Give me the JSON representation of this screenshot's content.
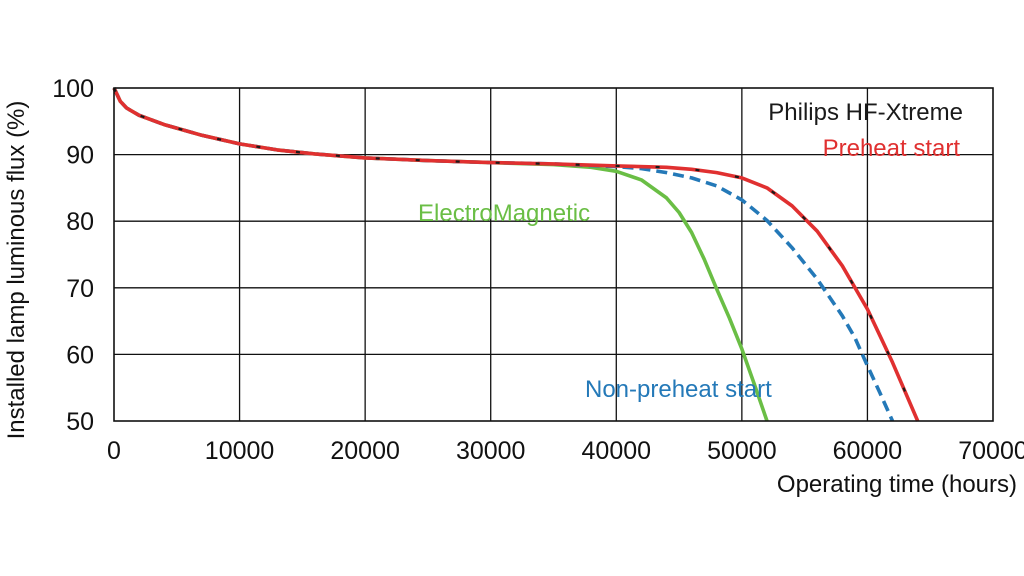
{
  "chart_data": {
    "type": "line",
    "title": "",
    "xlabel": "Operating time (hours)",
    "ylabel": "Installed lamp luminous flux  (%)",
    "xlim": [
      0,
      70000
    ],
    "ylim": [
      50,
      100
    ],
    "x_ticks": [
      0,
      10000,
      20000,
      30000,
      40000,
      50000,
      60000,
      70000
    ],
    "x_tick_labels": [
      "0",
      "10000",
      "20000",
      "30000",
      "40000",
      "50000",
      "60000",
      "70000"
    ],
    "y_ticks": [
      50,
      60,
      70,
      80,
      90,
      100
    ],
    "y_tick_labels": [
      "50",
      "60",
      "70",
      "80",
      "90",
      "100"
    ],
    "grid": true,
    "annotations": [
      {
        "text": "Philips HF-Xtreme",
        "color": "#1a1a1a"
      },
      {
        "text": "Preheat start",
        "color": "#e03030"
      },
      {
        "text": "ElectroMagnetic",
        "color": "#6abe45"
      },
      {
        "text": "Non-preheat start",
        "color": "#2479b8"
      }
    ],
    "series": [
      {
        "name": "ElectroMagnetic",
        "color": "#6abe45",
        "style": "solid",
        "x": [
          0,
          500,
          1000,
          2000,
          4000,
          7000,
          10000,
          13000,
          16000,
          20000,
          25000,
          30000,
          35000,
          38000,
          40000,
          42000,
          44000,
          45000,
          46000,
          47000,
          48000,
          49000,
          50000,
          51000,
          52000
        ],
        "y": [
          100,
          98,
          97,
          95.9,
          94.5,
          92.9,
          91.6,
          90.7,
          90.1,
          89.5,
          89.1,
          88.8,
          88.5,
          88.1,
          87.5,
          86.2,
          83.5,
          81.3,
          78.3,
          74.3,
          69.8,
          65.5,
          60.8,
          55.5,
          50
        ]
      },
      {
        "name": "Non-preheat start",
        "color": "#2479b8",
        "style": "dashed",
        "x": [
          0,
          500,
          1000,
          2000,
          4000,
          7000,
          10000,
          13000,
          16000,
          20000,
          25000,
          30000,
          35000,
          40000,
          42000,
          44000,
          46000,
          48000,
          50000,
          52000,
          54000,
          56000,
          58000,
          59000,
          60000,
          61000,
          62000
        ],
        "y": [
          100,
          98,
          97,
          95.9,
          94.5,
          92.9,
          91.6,
          90.7,
          90.1,
          89.5,
          89.1,
          88.8,
          88.6,
          88.2,
          87.9,
          87.3,
          86.5,
          85.3,
          83.2,
          80.1,
          76,
          71.3,
          65.8,
          62.5,
          58.3,
          54.2,
          50
        ]
      },
      {
        "name": "Preheat start",
        "color": "#e03030",
        "style": "solid",
        "x": [
          0,
          500,
          1000,
          2000,
          4000,
          7000,
          10000,
          13000,
          16000,
          20000,
          25000,
          30000,
          35000,
          40000,
          44000,
          46000,
          48000,
          50000,
          52000,
          54000,
          56000,
          58000,
          60000,
          61000,
          62000,
          63000,
          64000
        ],
        "y": [
          100,
          98,
          97,
          95.9,
          94.5,
          92.9,
          91.6,
          90.7,
          90.1,
          89.5,
          89.1,
          88.8,
          88.6,
          88.3,
          88.1,
          87.8,
          87.3,
          86.5,
          85,
          82.3,
          78.5,
          73.3,
          66.8,
          62.8,
          58.8,
          54.4,
          50
        ]
      },
      {
        "name": "Philips HF-Xtreme",
        "color": "#1a1a1a",
        "style": "dashed",
        "x": [
          0,
          500,
          1000,
          2000,
          4000,
          7000,
          10000,
          13000,
          16000,
          20000,
          25000,
          30000,
          35000,
          40000,
          44000,
          46000,
          48000,
          50000,
          52000,
          54000,
          56000,
          58000,
          60000,
          61000,
          62000,
          63000,
          64000
        ],
        "y": [
          100,
          98,
          97,
          95.9,
          94.5,
          92.9,
          91.6,
          90.7,
          90.1,
          89.5,
          89.1,
          88.8,
          88.6,
          88.3,
          88.1,
          87.8,
          87.3,
          86.5,
          85,
          82.3,
          78.5,
          73.3,
          66.8,
          62.8,
          58.8,
          54.4,
          50
        ]
      }
    ]
  }
}
